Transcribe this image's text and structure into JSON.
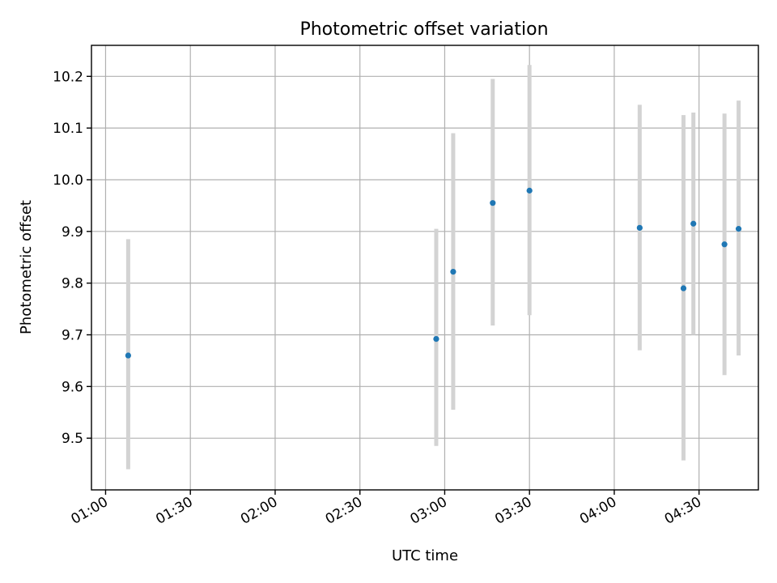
{
  "chart_data": {
    "type": "scatter",
    "title": "Photometric offset variation",
    "xlabel": "UTC time",
    "ylabel": "Photometric offset",
    "x_unit": "time of day (UTC)",
    "xlim": [
      "00:55",
      "04:51"
    ],
    "ylim": [
      9.4,
      10.26
    ],
    "grid": true,
    "x_ticks": [
      "01:00",
      "01:30",
      "02:00",
      "02:30",
      "03:00",
      "03:30",
      "04:00",
      "04:30"
    ],
    "y_ticks": [
      "9.5",
      "9.6",
      "9.7",
      "9.8",
      "9.9",
      "10.0",
      "10.1",
      "10.2"
    ],
    "series": [
      {
        "color": "#1f77b4",
        "errorbar_color": "#d3d3d3",
        "points": [
          {
            "x": "01:08",
            "y": 9.66,
            "ylow": 9.44,
            "yhigh": 9.885
          },
          {
            "x": "02:57",
            "y": 9.692,
            "ylow": 9.485,
            "yhigh": 9.905
          },
          {
            "x": "03:03",
            "y": 9.822,
            "ylow": 9.555,
            "yhigh": 10.09
          },
          {
            "x": "03:17",
            "y": 9.955,
            "ylow": 9.718,
            "yhigh": 10.195
          },
          {
            "x": "03:30",
            "y": 9.979,
            "ylow": 9.738,
            "yhigh": 10.222
          },
          {
            "x": "04:09",
            "y": 9.907,
            "ylow": 9.67,
            "yhigh": 10.145
          },
          {
            "x": "04:24.5",
            "y": 9.79,
            "ylow": 9.457,
            "yhigh": 10.125
          },
          {
            "x": "04:28",
            "y": 9.915,
            "ylow": 9.7,
            "yhigh": 10.13
          },
          {
            "x": "04:39",
            "y": 9.875,
            "ylow": 9.622,
            "yhigh": 10.128
          },
          {
            "x": "04:44",
            "y": 9.905,
            "ylow": 9.66,
            "yhigh": 10.153
          }
        ]
      }
    ]
  }
}
